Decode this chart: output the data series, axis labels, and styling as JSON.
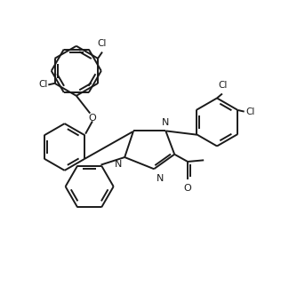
{
  "background_color": "#ffffff",
  "line_color": "#1a1a1a",
  "line_width": 1.4,
  "figsize": [
    3.43,
    3.31
  ],
  "dpi": 100,
  "font_size": 7.5,
  "xlim": [
    0,
    10
  ],
  "ylim": [
    0,
    10
  ]
}
